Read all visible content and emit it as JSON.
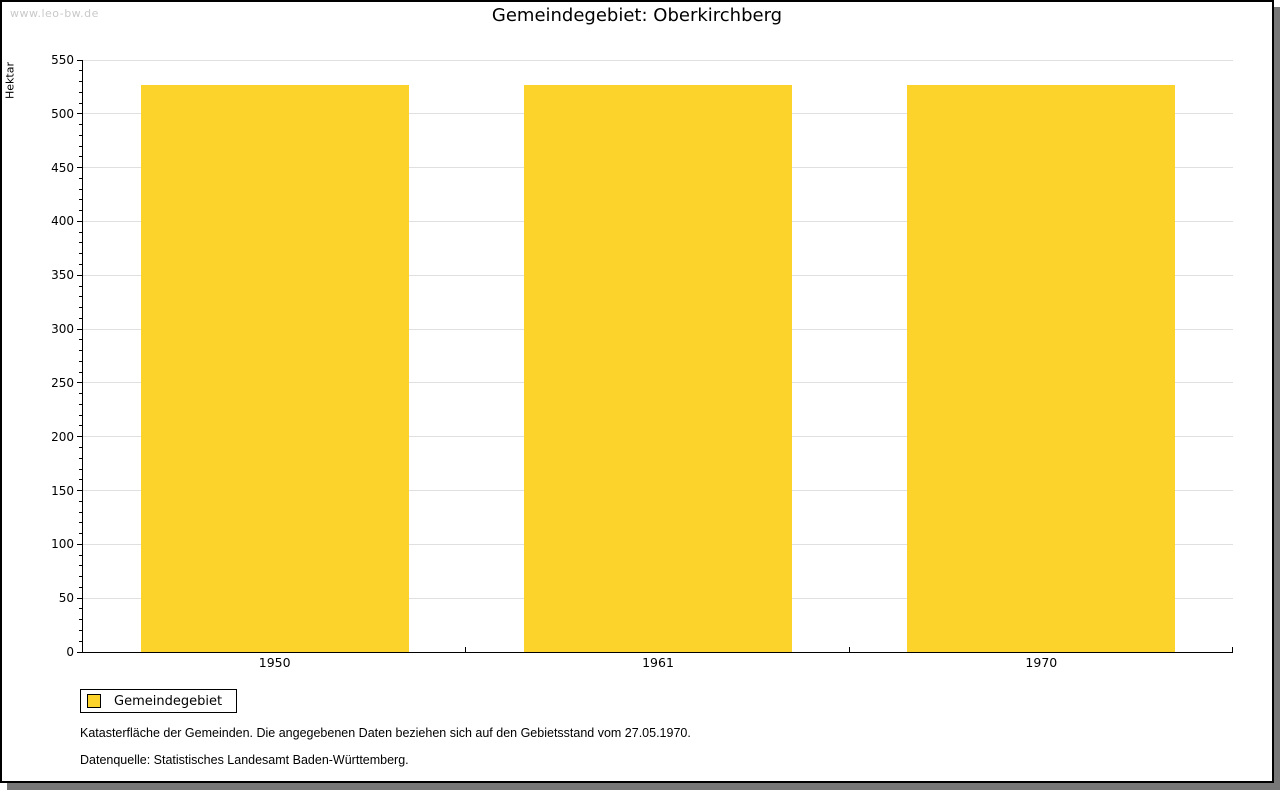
{
  "watermark": "www.leo-bw.de",
  "title": "Gemeindegebiet: Oberkirchberg",
  "chart_data": {
    "type": "bar",
    "title": "Gemeindegebiet: Oberkirchberg",
    "xlabel": "",
    "ylabel": "Hektar",
    "categories": [
      "1950",
      "1961",
      "1970"
    ],
    "series": [
      {
        "name": "Gemeindegebiet",
        "values": [
          527,
          527,
          527
        ]
      }
    ],
    "ylim": [
      0,
      550
    ],
    "y_major_step": 50,
    "y_minor_step": 10,
    "grid": "horizontal-major-only",
    "legend_position": "bottom-left",
    "bar_color": "#fcd32a",
    "bar_width_fraction": 0.7
  },
  "legend": {
    "label": "Gemeindegebiet",
    "swatch_icon": "yellow-square-swatch",
    "swatch_color": "#fcd32a"
  },
  "notes": [
    "Katasterfläche der Gemeinden. Die angegebenen Daten beziehen sich auf den Gebietsstand vom 27.05.1970.",
    "Datenquelle: Statistisches Landesamt Baden-Württemberg."
  ],
  "colors": {
    "bar": "#fcd32a",
    "gridline": "#e0e0e0",
    "axis": "#000000",
    "watermark": "#c9c9c9",
    "frame_border": "#000000",
    "frame_shadow": "#777777"
  }
}
